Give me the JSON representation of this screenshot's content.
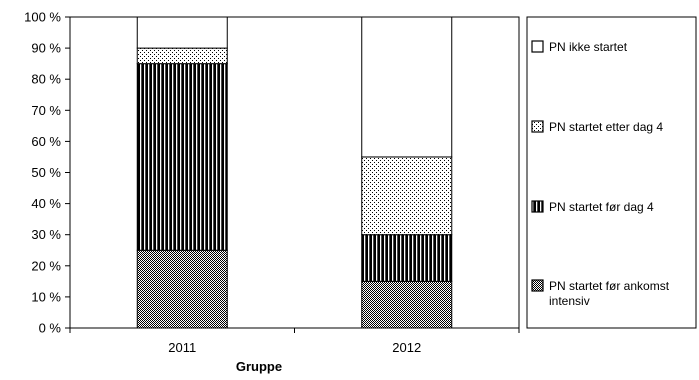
{
  "chart_data": {
    "type": "bar",
    "stacked": true,
    "categories": [
      "2011",
      "2012"
    ],
    "xlabel": "Gruppe",
    "ylabel": "",
    "ylim": [
      0,
      100
    ],
    "yticks": [
      0,
      10,
      20,
      30,
      40,
      50,
      60,
      70,
      80,
      90,
      100
    ],
    "ytick_labels": [
      "0 %",
      "10 %",
      "20 %",
      "30 %",
      "40 %",
      "50 %",
      "60 %",
      "70 %",
      "80 %",
      "90 %",
      "100 %"
    ],
    "grid": false,
    "legend_position": "right",
    "series": [
      {
        "name": "PN startet før ankomst intensiv",
        "values": [
          25,
          15
        ],
        "pattern": "fine-checker"
      },
      {
        "name": "PN startet før dag 4",
        "values": [
          60,
          15
        ],
        "pattern": "vertical-stripes"
      },
      {
        "name": "PN startet etter dag 4",
        "values": [
          5,
          25
        ],
        "pattern": "sparse-dots"
      },
      {
        "name": "PN ikke startet",
        "values": [
          10,
          45
        ],
        "pattern": "white"
      }
    ],
    "legend_order": [
      3,
      2,
      1,
      0
    ]
  }
}
